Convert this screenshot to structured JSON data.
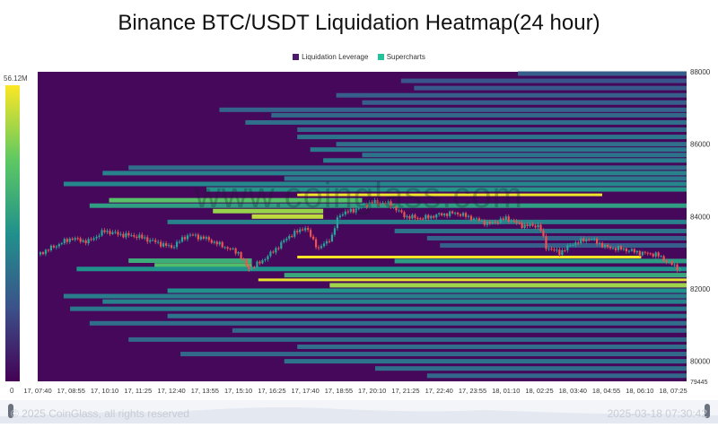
{
  "title": "Binance BTC/USDT Liquidation Heatmap(24 hour)",
  "legend": [
    {
      "label": "Liquidation Leverage",
      "color": "#4b1c6b"
    },
    {
      "label": "Supercharts",
      "color": "#22c29a"
    }
  ],
  "watermark": "www.coinglass.com",
  "footer": {
    "copyright": "© 2025 CoinGlass, all rights reserved",
    "timestamp": "2025-03-18 07:30:42"
  },
  "colors": {
    "background": "#46085a",
    "scale": [
      "#440154",
      "#3b528b",
      "#21918c",
      "#5ec962",
      "#fde725"
    ],
    "candle_up": "#26a69a",
    "candle_down": "#ef5350"
  },
  "chart_data": {
    "type": "heatmap",
    "title": "Binance BTC/USDT Liquidation Heatmap(24 hour)",
    "x_ticks": [
      "17, 07:40",
      "17, 08:55",
      "17, 10:10",
      "17, 11:25",
      "17, 12:40",
      "17, 13:55",
      "17, 15:10",
      "17, 16:25",
      "17, 17:40",
      "17, 18:55",
      "17, 20:10",
      "17, 21:25",
      "17, 22:40",
      "17, 23:55",
      "18, 01:10",
      "18, 02:25",
      "18, 03:40",
      "18, 04:55",
      "18, 06:10",
      "18, 07:25"
    ],
    "y_axis": {
      "min": 79445,
      "max": 88000,
      "ticks": [
        88000,
        86000,
        84000,
        82000,
        80000,
        79445
      ]
    },
    "colorbar": {
      "min": 0,
      "max": 56.12,
      "max_label": "56.12M",
      "min_label": "0"
    },
    "price_path": [
      {
        "t": 0,
        "p": 82950
      },
      {
        "t": 1,
        "p": 83400
      },
      {
        "t": 1.5,
        "p": 83300
      },
      {
        "t": 2,
        "p": 83600
      },
      {
        "t": 2.5,
        "p": 83500
      },
      {
        "t": 3,
        "p": 83450
      },
      {
        "t": 3.5,
        "p": 83300
      },
      {
        "t": 4,
        "p": 83150
      },
      {
        "t": 4.5,
        "p": 83500
      },
      {
        "t": 5,
        "p": 83400
      },
      {
        "t": 5.5,
        "p": 83200
      },
      {
        "t": 6,
        "p": 83000
      },
      {
        "t": 6.3,
        "p": 82550
      },
      {
        "t": 6.6,
        "p": 82700
      },
      {
        "t": 7,
        "p": 83000
      },
      {
        "t": 7.5,
        "p": 83450
      },
      {
        "t": 8,
        "p": 83700
      },
      {
        "t": 8.4,
        "p": 83100
      },
      {
        "t": 8.8,
        "p": 83450
      },
      {
        "t": 9,
        "p": 84050
      },
      {
        "t": 9.5,
        "p": 84200
      },
      {
        "t": 10,
        "p": 84400
      },
      {
        "t": 10.5,
        "p": 84350
      },
      {
        "t": 11,
        "p": 84000
      },
      {
        "t": 11.5,
        "p": 83950
      },
      {
        "t": 12,
        "p": 84050
      },
      {
        "t": 12.5,
        "p": 84100
      },
      {
        "t": 13,
        "p": 83950
      },
      {
        "t": 13.5,
        "p": 83800
      },
      {
        "t": 14,
        "p": 83950
      },
      {
        "t": 14.5,
        "p": 83750
      },
      {
        "t": 15,
        "p": 83750
      },
      {
        "t": 15.2,
        "p": 83150
      },
      {
        "t": 15.6,
        "p": 83000
      },
      {
        "t": 16,
        "p": 83250
      },
      {
        "t": 16.5,
        "p": 83400
      },
      {
        "t": 17,
        "p": 83150
      },
      {
        "t": 17.5,
        "p": 83100
      },
      {
        "t": 18,
        "p": 83000
      },
      {
        "t": 18.5,
        "p": 82950
      },
      {
        "t": 19,
        "p": 82650
      },
      {
        "t": 19.2,
        "p": 82550
      }
    ],
    "bands": [
      {
        "start": 0.74,
        "end": 1,
        "price": 87950,
        "intensity": 0.3
      },
      {
        "start": 0.56,
        "end": 1,
        "price": 87750,
        "intensity": 0.26
      },
      {
        "start": 0.58,
        "end": 1,
        "price": 87550,
        "intensity": 0.28
      },
      {
        "start": 0.46,
        "end": 1,
        "price": 87350,
        "intensity": 0.3
      },
      {
        "start": 0.5,
        "end": 1,
        "price": 87150,
        "intensity": 0.3
      },
      {
        "start": 0.28,
        "end": 1,
        "price": 86950,
        "intensity": 0.32
      },
      {
        "start": 0.36,
        "end": 1,
        "price": 86800,
        "intensity": 0.34
      },
      {
        "start": 0.32,
        "end": 1,
        "price": 86600,
        "intensity": 0.36
      },
      {
        "start": 0.4,
        "end": 1,
        "price": 86400,
        "intensity": 0.34
      },
      {
        "start": 0.4,
        "end": 1,
        "price": 86200,
        "intensity": 0.38
      },
      {
        "start": 0.46,
        "end": 1,
        "price": 86000,
        "intensity": 0.36
      },
      {
        "start": 0.42,
        "end": 1,
        "price": 85850,
        "intensity": 0.4
      },
      {
        "start": 0.5,
        "end": 1,
        "price": 85700,
        "intensity": 0.38
      },
      {
        "start": 0.44,
        "end": 1,
        "price": 85550,
        "intensity": 0.42
      },
      {
        "start": 0.14,
        "end": 1,
        "price": 85350,
        "intensity": 0.36
      },
      {
        "start": 0.1,
        "end": 1,
        "price": 85200,
        "intensity": 0.44
      },
      {
        "start": 0.38,
        "end": 1,
        "price": 85050,
        "intensity": 0.4
      },
      {
        "start": 0.04,
        "end": 1,
        "price": 84900,
        "intensity": 0.46
      },
      {
        "start": 0.26,
        "end": 1,
        "price": 84750,
        "intensity": 0.52
      },
      {
        "start": 0.4,
        "end": 0.87,
        "price": 84600,
        "intensity": 0.98
      },
      {
        "start": 0.11,
        "end": 0.5,
        "price": 84450,
        "intensity": 0.72
      },
      {
        "start": 0.08,
        "end": 1,
        "price": 84300,
        "intensity": 0.56
      },
      {
        "start": 0.27,
        "end": 0.44,
        "price": 84150,
        "intensity": 0.84
      },
      {
        "start": 0.33,
        "end": 0.44,
        "price": 84000,
        "intensity": 0.9
      },
      {
        "start": 0.2,
        "end": 1,
        "price": 83850,
        "intensity": 0.44
      },
      {
        "start": 0.55,
        "end": 1,
        "price": 83600,
        "intensity": 0.38
      },
      {
        "start": 0.6,
        "end": 1,
        "price": 83400,
        "intensity": 0.32
      },
      {
        "start": 0.62,
        "end": 1,
        "price": 83200,
        "intensity": 0.3
      },
      {
        "start": 0.4,
        "end": 0.93,
        "price": 82880,
        "intensity": 1.0
      },
      {
        "start": 0.55,
        "end": 1,
        "price": 82770,
        "intensity": 0.55
      },
      {
        "start": 0.14,
        "end": 0.33,
        "price": 82780,
        "intensity": 0.62
      },
      {
        "start": 0.18,
        "end": 0.33,
        "price": 82650,
        "intensity": 0.7
      },
      {
        "start": 0.06,
        "end": 1,
        "price": 82550,
        "intensity": 0.5
      },
      {
        "start": 0.38,
        "end": 1,
        "price": 82380,
        "intensity": 0.6
      },
      {
        "start": 0.34,
        "end": 1,
        "price": 82250,
        "intensity": 0.96
      },
      {
        "start": 0.45,
        "end": 1,
        "price": 82100,
        "intensity": 0.85
      },
      {
        "start": 0.2,
        "end": 1,
        "price": 81950,
        "intensity": 0.5
      },
      {
        "start": 0.04,
        "end": 1,
        "price": 81800,
        "intensity": 0.42
      },
      {
        "start": 0.1,
        "end": 1,
        "price": 81650,
        "intensity": 0.44
      },
      {
        "start": 0.05,
        "end": 1,
        "price": 81450,
        "intensity": 0.4
      },
      {
        "start": 0.2,
        "end": 1,
        "price": 81250,
        "intensity": 0.38
      },
      {
        "start": 0.08,
        "end": 1,
        "price": 81050,
        "intensity": 0.36
      },
      {
        "start": 0.3,
        "end": 1,
        "price": 80850,
        "intensity": 0.34
      },
      {
        "start": 0.14,
        "end": 1,
        "price": 80600,
        "intensity": 0.34
      },
      {
        "start": 0.4,
        "end": 1,
        "price": 80400,
        "intensity": 0.36
      },
      {
        "start": 0.22,
        "end": 1,
        "price": 80200,
        "intensity": 0.34
      },
      {
        "start": 0.38,
        "end": 1,
        "price": 80000,
        "intensity": 0.38
      },
      {
        "start": 0.52,
        "end": 1,
        "price": 79800,
        "intensity": 0.36
      },
      {
        "start": 0.6,
        "end": 1,
        "price": 79600,
        "intensity": 0.34
      }
    ]
  }
}
